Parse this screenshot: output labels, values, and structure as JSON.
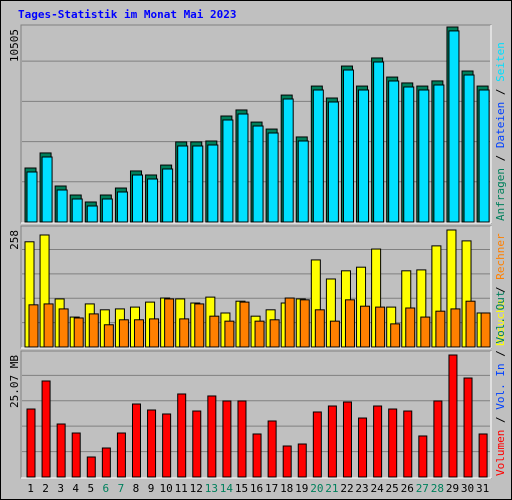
{
  "title": "Tages-Statistik im Monat Mai 2023",
  "categories": [
    "1",
    "2",
    "3",
    "4",
    "5",
    "6",
    "7",
    "8",
    "9",
    "10",
    "11",
    "12",
    "13",
    "14",
    "15",
    "16",
    "17",
    "18",
    "19",
    "20",
    "21",
    "22",
    "23",
    "24",
    "25",
    "26",
    "27",
    "28",
    "29",
    "30",
    "31"
  ],
  "weekend_indexes": [
    5,
    6,
    12,
    13,
    19,
    20,
    26,
    27
  ],
  "weekday_color": "#000000",
  "weekend_color": "#00805c",
  "separator": " / ",
  "chart_data": [
    {
      "type": "bar",
      "ylim": [
        0,
        10505
      ],
      "yticks": [
        10505
      ],
      "series": [
        {
          "name": "Anfragen",
          "color": "#00805c",
          "values": [
            2830,
            3650,
            1850,
            1360,
            980,
            1360,
            1740,
            2670,
            2450,
            2990,
            4250,
            4250,
            4300,
            5660,
            5990,
            5330,
            4950,
            6800,
            4520,
            7290,
            6640,
            8380,
            7290,
            8820,
            7780,
            7460,
            7290,
            7570,
            10505,
            8110,
            7290
          ]
        },
        {
          "name": "Dateien",
          "color": "#0040ff"
        },
        {
          "name": "Seiten",
          "color": "#00e0ff",
          "values": [
            2722,
            3538,
            1742,
            1252,
            871,
            1252,
            1633,
            2558,
            2340,
            2885,
            4137,
            4137,
            4191,
            5552,
            5878,
            5225,
            4844,
            6695,
            4409,
            7185,
            6532,
            8273,
            7185,
            8709,
            7675,
            7348,
            7185,
            7457,
            10400,
            8001,
            7185
          ]
        }
      ]
    },
    {
      "type": "bar",
      "ylim": [
        0,
        258
      ],
      "yticks": [
        258
      ],
      "series": [
        {
          "name": "Besuche",
          "color": "#ffff00",
          "values": [
            232,
            247,
            106,
            66,
            95,
            82,
            84,
            88,
            99,
            108,
            106,
            97,
            110,
            75,
            101,
            68,
            82,
            97,
            106,
            192,
            150,
            168,
            176,
            216,
            88,
            168,
            170,
            223,
            258,
            234,
            75
          ]
        },
        {
          "name": "Rechner",
          "color": "#ff8000",
          "values": [
            93,
            95,
            84,
            64,
            73,
            49,
            60,
            60,
            62,
            106,
            62,
            95,
            68,
            57,
            99,
            57,
            60,
            108,
            104,
            82,
            57,
            104,
            90,
            88,
            51,
            86,
            66,
            79,
            84,
            101,
            75
          ]
        }
      ]
    },
    {
      "type": "bar",
      "ylim": [
        0,
        25.07
      ],
      "yticks": [
        {
          "value": 25.07,
          "label": "25.07 MB"
        }
      ],
      "series": [
        {
          "name": "Volumen",
          "color": "#ff0000",
          "values": [
            13.97,
            19.73,
            10.89,
            9.04,
            4.11,
            5.96,
            9.04,
            15.0,
            13.77,
            12.95,
            17.06,
            13.56,
            16.65,
            15.62,
            15.62,
            8.84,
            11.51,
            6.37,
            6.78,
            13.36,
            14.59,
            15.41,
            12.12,
            14.59,
            13.97,
            13.56,
            8.43,
            15.62,
            25.07,
            20.34,
            8.84
          ]
        },
        {
          "name": "Vol. In",
          "color": "#0040ff"
        },
        {
          "name": "Vol. Out",
          "color": "#00805c"
        }
      ]
    }
  ]
}
